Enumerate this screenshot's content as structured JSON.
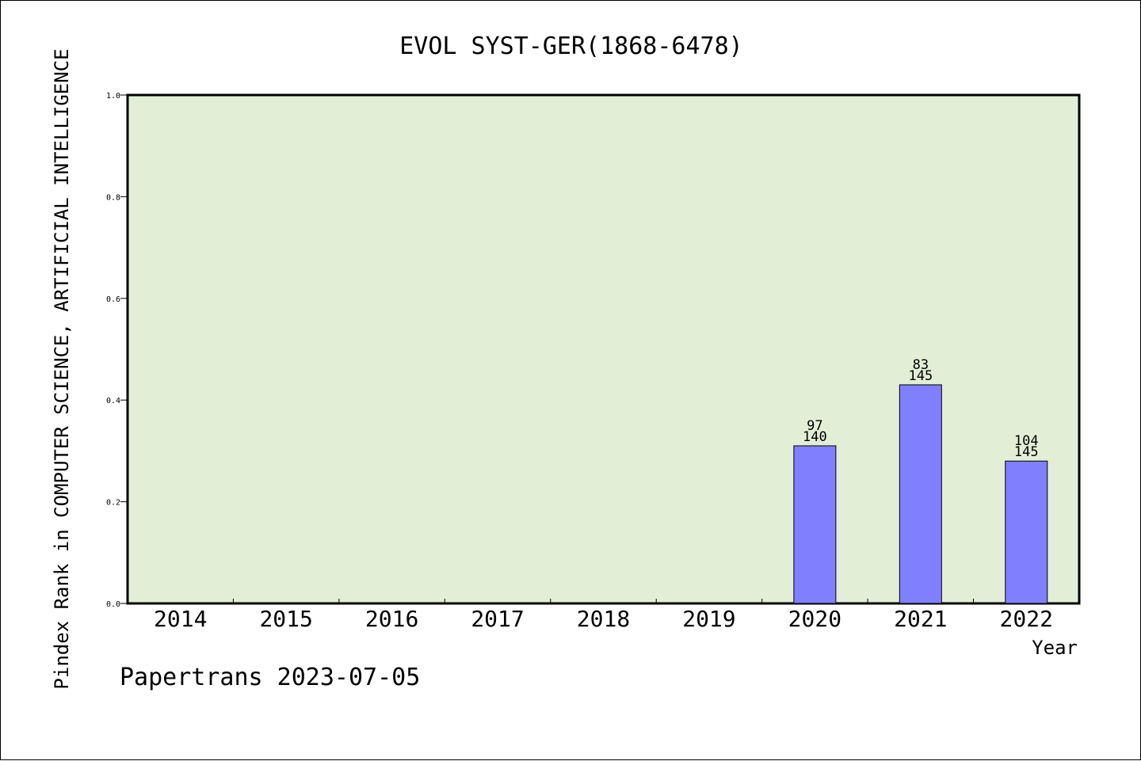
{
  "chart_data": {
    "type": "bar",
    "title": "EVOL SYST-GER(1868-6478)",
    "xlabel": "Year",
    "ylabel": "Pindex Rank in COMPUTER SCIENCE, ARTIFICIAL INTELLIGENCE",
    "categories": [
      "2014",
      "2015",
      "2016",
      "2017",
      "2018",
      "2019",
      "2020",
      "2021",
      "2022"
    ],
    "values": [
      null,
      null,
      null,
      null,
      null,
      null,
      0.31,
      0.43,
      0.28
    ],
    "bar_labels": [
      null,
      null,
      null,
      null,
      null,
      null,
      {
        "rank": "97",
        "total": "140"
      },
      {
        "rank": "83",
        "total": "145"
      },
      {
        "rank": "104",
        "total": "145"
      }
    ],
    "ylim": [
      0,
      1.0
    ],
    "yticks": [
      "0.0",
      "0.2",
      "0.4",
      "0.6",
      "0.8",
      "1.0"
    ],
    "grid": false,
    "colors": {
      "plot_background": "#e2efd6",
      "bar_fill": "#8080ff",
      "bar_stroke": "#000000"
    }
  },
  "footer": "Papertrans 2023-07-05"
}
